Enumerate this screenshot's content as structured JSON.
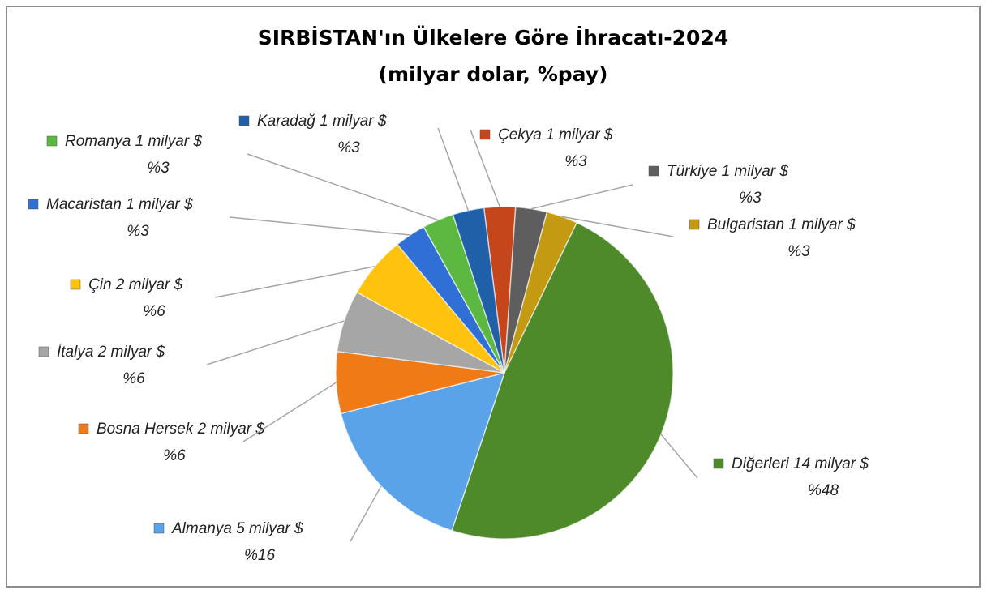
{
  "chart_data": {
    "type": "pie",
    "title": "SIRBİSTAN'ın Ülkelere Göre İhracatı-2024",
    "subtitle": "(milyar dolar, %pay)",
    "categories": [
      "Çekya",
      "Türkiye",
      "Bulgaristan",
      "Diğerleri",
      "Almanya",
      "Bosna Hersek",
      "İtalya",
      "Çin",
      "Macaristan",
      "Romanya",
      "Karadağ"
    ],
    "values": [
      1,
      1,
      1,
      14,
      5,
      2,
      2,
      2,
      1,
      1,
      1
    ],
    "value_labels": [
      "1 milyar $",
      "1 milyar $",
      "1 milyar $",
      "14 milyar $",
      "5 milyar $",
      "2 milyar $",
      "2 milyar $",
      "2 milyar $",
      "1 milyar $",
      "1 milyar $",
      "1 milyar $"
    ],
    "percents": [
      3,
      3,
      3,
      48,
      16,
      6,
      6,
      6,
      3,
      3,
      3
    ],
    "percent_labels": [
      "%3",
      "%3",
      "%3",
      "%48",
      "%16",
      "%6",
      "%6",
      "%6",
      "%3",
      "%3",
      "%3"
    ],
    "colors": [
      "#c4461a",
      "#5e5e5e",
      "#c49a12",
      "#4f8a2a",
      "#5ba3e8",
      "#f07a16",
      "#a6a6a6",
      "#ffc20e",
      "#2f6fd6",
      "#5cb840",
      "#2060a8"
    ]
  }
}
